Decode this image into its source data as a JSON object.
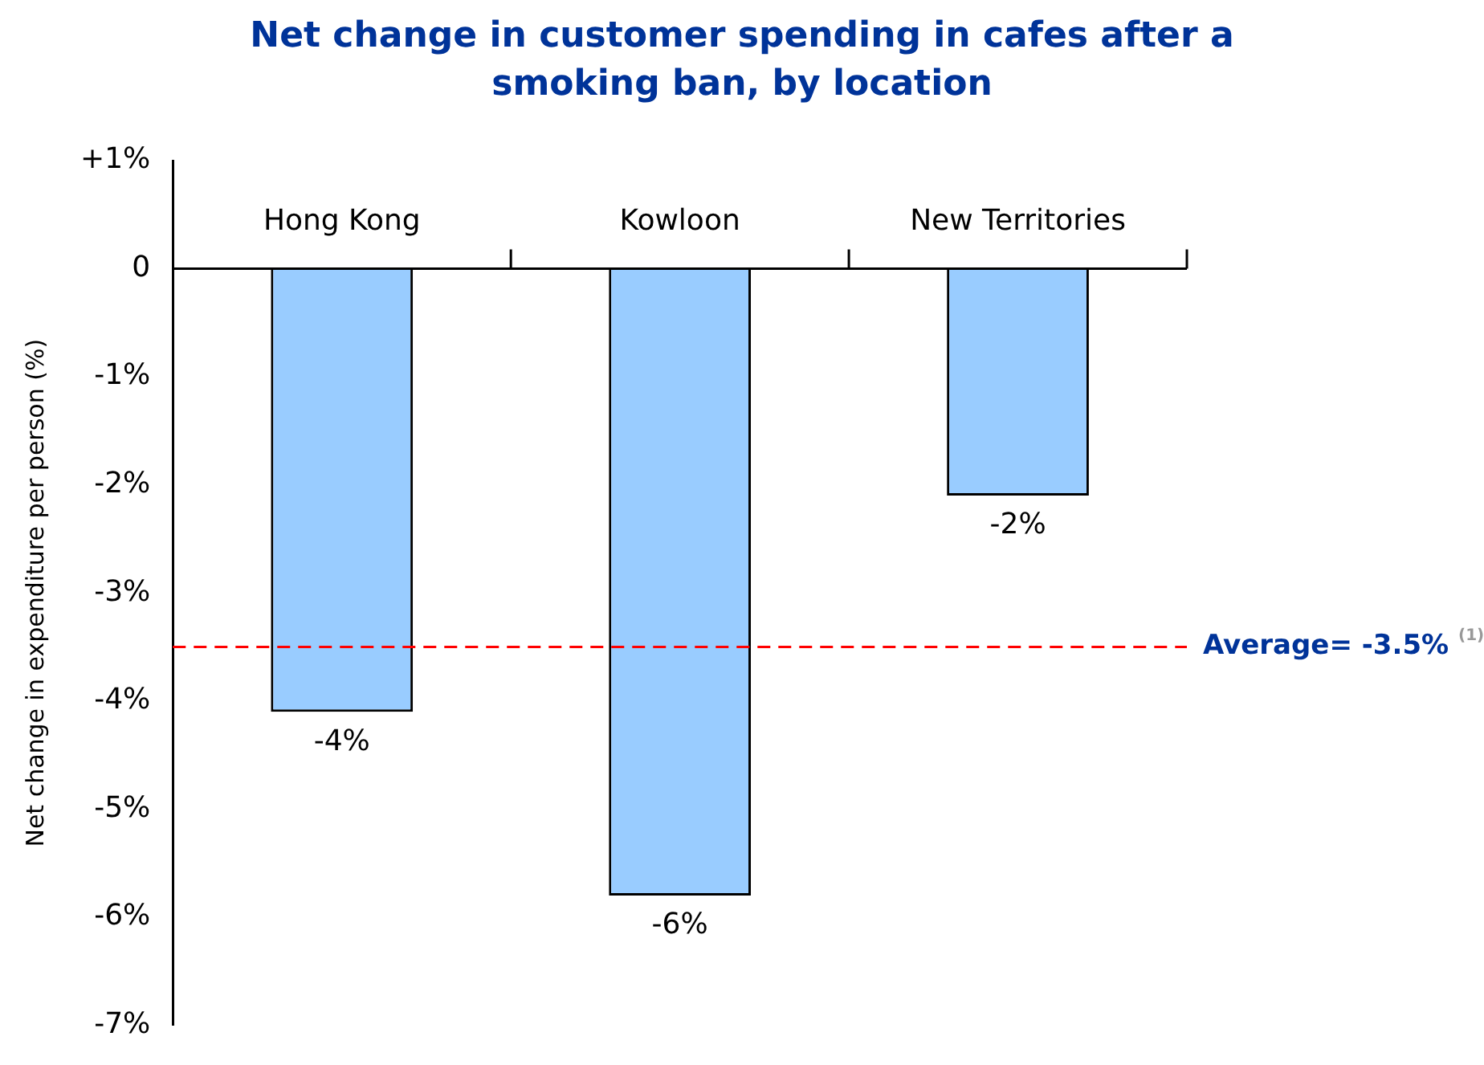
{
  "chart_data": {
    "type": "bar",
    "title": "Net change in customer spending in cafes after a smoking ban, by location",
    "ylabel": "Net change in expenditure per person (%)",
    "categories": [
      "Hong Kong",
      "Kowloon",
      "New Territories"
    ],
    "values": [
      -4.1,
      -5.8,
      -2.1
    ],
    "value_labels": [
      "-4%",
      "-6%",
      "-2%"
    ],
    "color": "#99ccff",
    "ylim": [
      -7,
      1
    ],
    "yticks": [
      {
        "value": 1,
        "label": "+1%"
      },
      0,
      {
        "value": -1,
        "label": "-1%"
      },
      {
        "value": -2,
        "label": "-2%"
      },
      {
        "value": -3,
        "label": "-3%"
      },
      {
        "value": -4,
        "label": "-4%"
      },
      {
        "value": -5,
        "label": "-5%"
      },
      {
        "value": -6,
        "label": "-6%"
      },
      {
        "value": -7,
        "label": "-7%"
      }
    ],
    "ref_lines": [
      {
        "axis": "y",
        "value": -3.5,
        "label": "Average= -3.5% $^{(1)}$",
        "color": "#ff0000",
        "line_style": "dashed"
      }
    ],
    "grid": false,
    "legend": false
  }
}
